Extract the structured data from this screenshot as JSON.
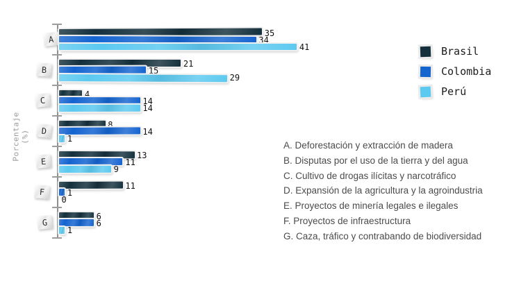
{
  "figure": {
    "background": "#ffffff"
  },
  "chart_data": {
    "type": "bar",
    "orientation": "horizontal",
    "title": "",
    "xlabel": "",
    "ylabel": "Porcentaje (%)",
    "categories": [
      "A",
      "B",
      "C",
      "D",
      "E",
      "F",
      "G"
    ],
    "series": [
      {
        "name": "Brasil",
        "color": "#14303c",
        "values": [
          35,
          21,
          4,
          8,
          13,
          11,
          6
        ]
      },
      {
        "name": "Colombia",
        "color": "#1464d0",
        "values": [
          34,
          15,
          14,
          14,
          11,
          1,
          6
        ]
      },
      {
        "name": "Perú",
        "color": "#5cc9f0",
        "values": [
          41,
          29,
          14,
          1,
          9,
          0,
          1
        ]
      }
    ],
    "value_labels_shown": true,
    "xlim": [
      0,
      45
    ],
    "grid": false,
    "legend_position": "upper right"
  },
  "legend": {
    "items": [
      {
        "label": "Brasil",
        "color": "#14303c"
      },
      {
        "label": "Colombia",
        "color": "#1464d0"
      },
      {
        "label": "Perú",
        "color": "#5cc9f0"
      }
    ]
  },
  "category_key": {
    "items": [
      "A. Deforestación y extracción de madera",
      "B. Disputas por el uso de la tierra y del agua",
      "C. Cultivo de drogas ilícitas y narcotráfico",
      "D. Expansión de la agricultura y la agroindustria",
      "E. Proyectos de minería legales e ilegales",
      "F. Proyectos de infraestructura",
      "G. Caza, tráfico y contrabando de biodiversidad"
    ]
  }
}
